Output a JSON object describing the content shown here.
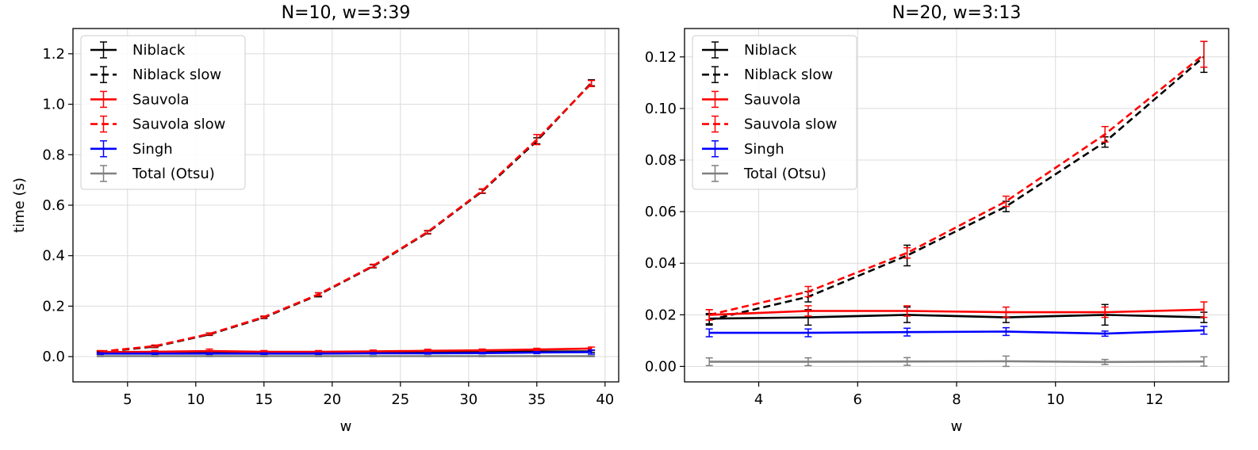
{
  "chart_data": [
    {
      "type": "line",
      "title": "N=10, w=3:39",
      "xlabel": "w",
      "ylabel": "time (s)",
      "xlim": [
        1,
        41
      ],
      "ylim": [
        -0.1,
        1.3
      ],
      "xticks": [
        5,
        10,
        15,
        20,
        25,
        30,
        35,
        40
      ],
      "yticks": [
        0.0,
        0.2,
        0.4,
        0.6,
        0.8,
        1.0,
        1.2
      ],
      "ytick_labels": [
        "0.0",
        "0.2",
        "0.4",
        "0.6",
        "0.8",
        "1.0",
        "1.2"
      ],
      "grid": true,
      "legend_position": "top-left",
      "x": [
        3,
        7,
        11,
        15,
        19,
        23,
        27,
        31,
        35,
        39
      ],
      "series": [
        {
          "name": "Niblack",
          "color": "#000000",
          "dash": "solid",
          "values": [
            0.015,
            0.016,
            0.017,
            0.016,
            0.016,
            0.017,
            0.018,
            0.019,
            0.02,
            0.021
          ],
          "errors": [
            0.004,
            0.004,
            0.004,
            0.004,
            0.004,
            0.004,
            0.004,
            0.004,
            0.004,
            0.004
          ]
        },
        {
          "name": "Niblack slow",
          "color": "#000000",
          "dash": "dashed",
          "values": [
            0.018,
            0.04,
            0.088,
            0.155,
            0.245,
            0.358,
            0.492,
            0.655,
            0.855,
            1.085
          ],
          "errors": [
            0.004,
            0.004,
            0.004,
            0.004,
            0.008,
            0.006,
            0.006,
            0.008,
            0.012,
            0.012
          ]
        },
        {
          "name": "Sauvola",
          "color": "#ff0000",
          "dash": "solid",
          "values": [
            0.018,
            0.019,
            0.022,
            0.019,
            0.019,
            0.021,
            0.023,
            0.025,
            0.028,
            0.032
          ],
          "errors": [
            0.005,
            0.005,
            0.008,
            0.005,
            0.005,
            0.005,
            0.006,
            0.005,
            0.005,
            0.006
          ]
        },
        {
          "name": "Sauvola slow",
          "color": "#ff0000",
          "dash": "dashed",
          "values": [
            0.02,
            0.042,
            0.09,
            0.157,
            0.247,
            0.36,
            0.494,
            0.657,
            0.86,
            1.082
          ],
          "errors": [
            0.004,
            0.004,
            0.004,
            0.004,
            0.006,
            0.006,
            0.006,
            0.008,
            0.02,
            0.012
          ]
        },
        {
          "name": "Singh",
          "color": "#0000ff",
          "dash": "solid",
          "values": [
            0.012,
            0.012,
            0.012,
            0.012,
            0.012,
            0.013,
            0.013,
            0.014,
            0.016,
            0.018
          ],
          "errors": [
            0.003,
            0.003,
            0.003,
            0.003,
            0.003,
            0.003,
            0.003,
            0.003,
            0.004,
            0.008
          ]
        },
        {
          "name": "Total (Otsu)",
          "color": "#808080",
          "dash": "solid",
          "values": [
            0.002,
            0.002,
            0.002,
            0.002,
            0.002,
            0.002,
            0.002,
            0.002,
            0.002,
            0.002
          ],
          "errors": [
            0.002,
            0.002,
            0.002,
            0.002,
            0.002,
            0.002,
            0.002,
            0.002,
            0.002,
            0.002
          ]
        }
      ]
    },
    {
      "type": "line",
      "title": "N=20, w=3:13",
      "xlabel": "w",
      "ylabel": "",
      "xlim": [
        2.5,
        13.5
      ],
      "ylim": [
        -0.006,
        0.131
      ],
      "xticks": [
        4,
        6,
        8,
        10,
        12
      ],
      "yticks": [
        0.0,
        0.02,
        0.04,
        0.06,
        0.08,
        0.1,
        0.12
      ],
      "ytick_labels": [
        "0.00",
        "0.02",
        "0.04",
        "0.06",
        "0.08",
        "0.10",
        "0.12"
      ],
      "grid": true,
      "legend_position": "top-left",
      "x": [
        3,
        5,
        7,
        9,
        11,
        13
      ],
      "series": [
        {
          "name": "Niblack",
          "color": "#000000",
          "dash": "solid",
          "values": [
            0.0185,
            0.019,
            0.02,
            0.019,
            0.02,
            0.019
          ],
          "errors": [
            0.002,
            0.003,
            0.003,
            0.002,
            0.004,
            0.002
          ]
        },
        {
          "name": "Niblack slow",
          "color": "#000000",
          "dash": "dashed",
          "values": [
            0.018,
            0.027,
            0.043,
            0.062,
            0.087,
            0.12
          ],
          "errors": [
            0.002,
            0.002,
            0.004,
            0.002,
            0.002,
            0.006
          ]
        },
        {
          "name": "Sauvola",
          "color": "#ff0000",
          "dash": "solid",
          "values": [
            0.02,
            0.0215,
            0.0215,
            0.021,
            0.021,
            0.022
          ],
          "errors": [
            0.002,
            0.002,
            0.002,
            0.002,
            0.002,
            0.003
          ]
        },
        {
          "name": "Sauvola slow",
          "color": "#ff0000",
          "dash": "dashed",
          "values": [
            0.02,
            0.029,
            0.044,
            0.064,
            0.09,
            0.121
          ],
          "errors": [
            0.002,
            0.002,
            0.002,
            0.002,
            0.003,
            0.005
          ]
        },
        {
          "name": "Singh",
          "color": "#0000ff",
          "dash": "solid",
          "values": [
            0.013,
            0.013,
            0.0133,
            0.0135,
            0.0127,
            0.014
          ],
          "errors": [
            0.0015,
            0.0015,
            0.0015,
            0.0015,
            0.001,
            0.0015
          ]
        },
        {
          "name": "Total (Otsu)",
          "color": "#808080",
          "dash": "solid",
          "values": [
            0.0018,
            0.0018,
            0.0019,
            0.002,
            0.0017,
            0.0019
          ],
          "errors": [
            0.0015,
            0.0015,
            0.0015,
            0.002,
            0.001,
            0.0018
          ]
        }
      ]
    }
  ]
}
